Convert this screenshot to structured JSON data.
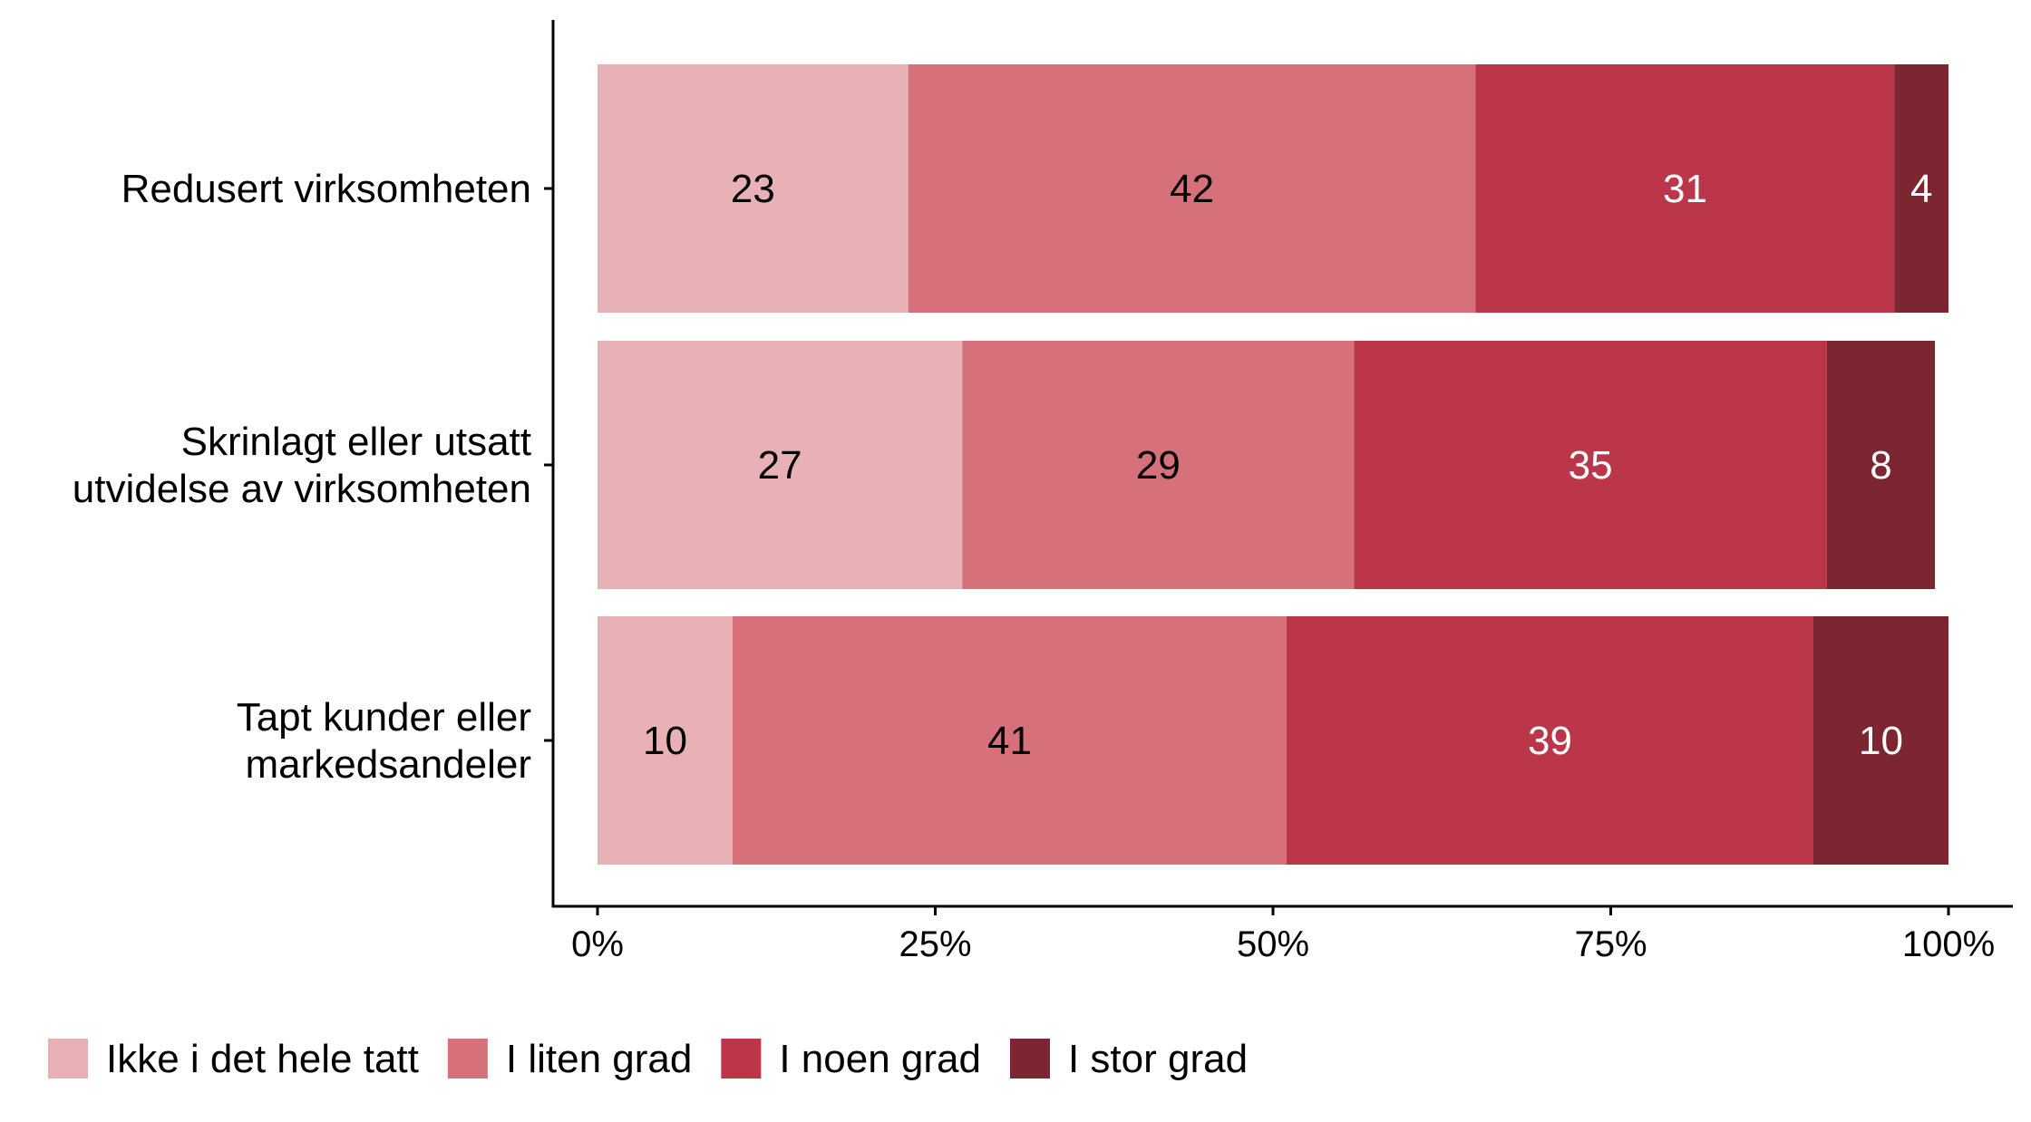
{
  "chart_data": {
    "type": "bar",
    "orientation": "horizontal",
    "stacked": true,
    "categories": [
      [
        "Redusert virksomheten"
      ],
      [
        "Skrinlagt eller utsatt",
        "utvidelse av virksomheten"
      ],
      [
        "Tapt kunder eller",
        "markedsandeler"
      ]
    ],
    "series": [
      {
        "name": "Ikke i det hele tatt",
        "color": "#E8B1B6",
        "label_color": "#000000",
        "values": [
          23,
          27,
          10
        ]
      },
      {
        "name": "I liten grad",
        "color": "#D6707B",
        "label_color": "#000000",
        "values": [
          42,
          29,
          41
        ]
      },
      {
        "name": "I noen grad",
        "color": "#BB3648",
        "label_color": "#FFFFFF",
        "values": [
          31,
          35,
          39
        ]
      },
      {
        "name": "I stor grad",
        "color": "#7B2630",
        "label_color": "#FFFFFF",
        "values": [
          4,
          8,
          10
        ]
      }
    ],
    "xlim": [
      0,
      100
    ],
    "xticks": [
      0,
      25,
      50,
      75,
      100
    ],
    "xtick_labels": [
      "0%",
      "25%",
      "50%",
      "75%",
      "100%"
    ],
    "legend_position": "bottom",
    "grid": false
  }
}
